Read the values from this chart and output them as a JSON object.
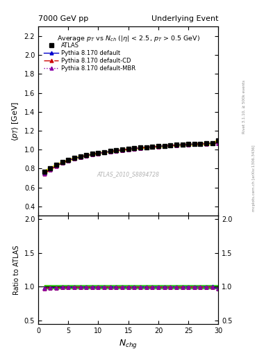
{
  "title_left": "7000 GeV pp",
  "title_right": "Underlying Event",
  "plot_title": "Average $p_T$ vs $N_{ch}$ ($|\\eta|$ < 2.5, $p_T$ > 0.5 GeV)",
  "xlabel": "$N_{chg}$",
  "ylabel_main": "$\\langle p_T \\rangle$ [GeV]",
  "ylabel_ratio": "Ratio to ATLAS",
  "right_label_top": "Rivet 3.1.10, ≥ 500k events",
  "right_label_bot": "mcplots.cern.ch [arXiv:1306.3436]",
  "watermark": "ATLAS_2010_S8894728",
  "xlim": [
    0,
    30
  ],
  "ylim_main": [
    0.3,
    2.3
  ],
  "ylim_ratio": [
    0.45,
    2.05
  ],
  "yticks_main": [
    0.4,
    0.6,
    0.8,
    1.0,
    1.2,
    1.4,
    1.6,
    1.8,
    2.0,
    2.2
  ],
  "yticks_ratio": [
    0.5,
    1.0,
    1.5,
    2.0
  ],
  "xticks": [
    0,
    5,
    10,
    15,
    20,
    25,
    30
  ],
  "nch_data": [
    1,
    2,
    3,
    4,
    5,
    6,
    7,
    8,
    9,
    10,
    11,
    12,
    13,
    14,
    15,
    16,
    17,
    18,
    19,
    20,
    21,
    22,
    23,
    24,
    25,
    26,
    27,
    28,
    29,
    30
  ],
  "atlas_pt": [
    0.765,
    0.8,
    0.838,
    0.868,
    0.892,
    0.912,
    0.928,
    0.942,
    0.954,
    0.965,
    0.975,
    0.984,
    0.993,
    1.001,
    1.008,
    1.015,
    1.021,
    1.027,
    1.032,
    1.037,
    1.042,
    1.046,
    1.05,
    1.054,
    1.057,
    1.06,
    1.063,
    1.066,
    1.068,
    1.1
  ],
  "atlas_err": [
    0.018,
    0.013,
    0.011,
    0.009,
    0.008,
    0.008,
    0.007,
    0.007,
    0.007,
    0.006,
    0.006,
    0.006,
    0.006,
    0.006,
    0.006,
    0.006,
    0.006,
    0.006,
    0.006,
    0.006,
    0.006,
    0.006,
    0.006,
    0.007,
    0.007,
    0.007,
    0.008,
    0.009,
    0.01,
    0.014
  ],
  "pythia_default_pt": [
    0.75,
    0.791,
    0.829,
    0.861,
    0.886,
    0.907,
    0.924,
    0.938,
    0.951,
    0.962,
    0.972,
    0.981,
    0.99,
    0.998,
    1.005,
    1.012,
    1.018,
    1.024,
    1.03,
    1.035,
    1.04,
    1.044,
    1.048,
    1.052,
    1.056,
    1.059,
    1.062,
    1.065,
    1.068,
    1.071
  ],
  "pythia_cd_pt": [
    0.748,
    0.789,
    0.827,
    0.859,
    0.884,
    0.906,
    0.923,
    0.937,
    0.95,
    0.961,
    0.971,
    0.98,
    0.989,
    0.997,
    1.004,
    1.011,
    1.017,
    1.023,
    1.029,
    1.034,
    1.039,
    1.043,
    1.047,
    1.051,
    1.055,
    1.058,
    1.061,
    1.064,
    1.067,
    1.07
  ],
  "pythia_mbr_pt": [
    0.748,
    0.789,
    0.827,
    0.859,
    0.884,
    0.906,
    0.923,
    0.937,
    0.95,
    0.961,
    0.971,
    0.98,
    0.989,
    0.997,
    1.004,
    1.011,
    1.017,
    1.023,
    1.029,
    1.034,
    1.039,
    1.043,
    1.047,
    1.051,
    1.055,
    1.058,
    1.061,
    1.064,
    1.067,
    1.07
  ],
  "color_default": "#0000cc",
  "color_cd": "#cc0000",
  "color_mbr": "#8800aa",
  "color_atlas_fill": "#ffff00",
  "color_green_fill": "#00bb00",
  "bg_color": "#ffffff"
}
